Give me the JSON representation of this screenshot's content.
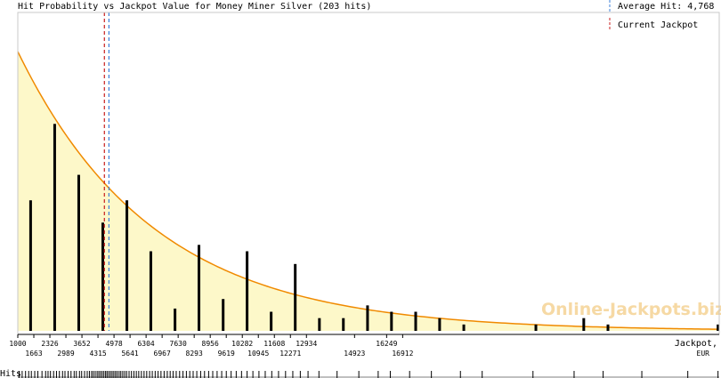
{
  "chart_data": {
    "type": "bar",
    "title": "Hit Probability vs Jackpot Value for Money Miner Silver (203 hits)",
    "xlabel": "Jackpot,",
    "xunit": "EUR",
    "rug_label": "Hits",
    "watermark": "Online-Jackpots.biz",
    "legend": {
      "placement": "top-right",
      "items": [
        {
          "label": "Average Hit: 4,768",
          "color": "#3b7fd9",
          "value": 4768
        },
        {
          "label": "Current Jackpot",
          "color": "#c81e1e",
          "value": 4580
        }
      ]
    },
    "xlim": [
      1000,
      30000
    ],
    "ylim": [
      0,
      1
    ],
    "tick_labels_top": [
      "1000",
      "2326",
      "3652",
      "4978",
      "6304",
      "7630",
      "8956",
      "10282",
      "11608",
      "12934",
      "16249"
    ],
    "tick_labels_bottom": [
      "1663",
      "2989",
      "4315",
      "5641",
      "6967",
      "8293",
      "9619",
      "10945",
      "12271",
      "14923",
      "16912"
    ],
    "bars": [
      {
        "x": 1530,
        "value": 0.41
      },
      {
        "x": 2525,
        "value": 0.65
      },
      {
        "x": 3520,
        "value": 0.49
      },
      {
        "x": 4515,
        "value": 0.34
      },
      {
        "x": 5510,
        "value": 0.41
      },
      {
        "x": 6500,
        "value": 0.25
      },
      {
        "x": 7500,
        "value": 0.07
      },
      {
        "x": 8490,
        "value": 0.27
      },
      {
        "x": 9490,
        "value": 0.1
      },
      {
        "x": 10480,
        "value": 0.25
      },
      {
        "x": 11475,
        "value": 0.06
      },
      {
        "x": 12470,
        "value": 0.21
      },
      {
        "x": 13470,
        "value": 0.04
      },
      {
        "x": 14460,
        "value": 0.04
      },
      {
        "x": 15460,
        "value": 0.08
      },
      {
        "x": 16450,
        "value": 0.06
      },
      {
        "x": 17450,
        "value": 0.06
      },
      {
        "x": 18440,
        "value": 0.04
      },
      {
        "x": 19440,
        "value": 0.02
      },
      {
        "x": 22420,
        "value": 0.02
      },
      {
        "x": 24400,
        "value": 0.04
      },
      {
        "x": 25400,
        "value": 0.02
      },
      {
        "x": 29950,
        "value": 0.02
      }
    ],
    "curve": {
      "color": "#f08a00",
      "fill": "#fdf8c9"
    },
    "hits": [
      1050,
      1180,
      1320,
      1450,
      1560,
      1700,
      1830,
      2000,
      2150,
      2250,
      2350,
      2480,
      2600,
      2720,
      2850,
      2950,
      3080,
      3200,
      3330,
      3420,
      3550,
      3640,
      3760,
      3870,
      3960,
      4050,
      4120,
      4200,
      4280,
      4350,
      4420,
      4490,
      4560,
      4630,
      4690,
      4760,
      4830,
      4900,
      4970,
      5040,
      5110,
      5190,
      5260,
      5340,
      5420,
      5500,
      5600,
      5700,
      5800,
      5900,
      6000,
      6110,
      6220,
      6330,
      6450,
      6560,
      6680,
      6800,
      6920,
      7050,
      7180,
      7300,
      7420,
      7550,
      7690,
      7830,
      7970,
      8110,
      8250,
      8400,
      8560,
      8720,
      8890,
      9060,
      9240,
      9430,
      9620,
      9820,
      10030,
      10250,
      10480,
      10720,
      10970,
      11230,
      11500,
      11780,
      12070,
      12370,
      12680,
      13000,
      13450,
      14200,
      15100,
      15900,
      16400,
      17200,
      18100,
      19300,
      20200,
      22300,
      24000,
      25200,
      26800,
      28700,
      29950
    ],
    "bar_color": "#000000"
  }
}
